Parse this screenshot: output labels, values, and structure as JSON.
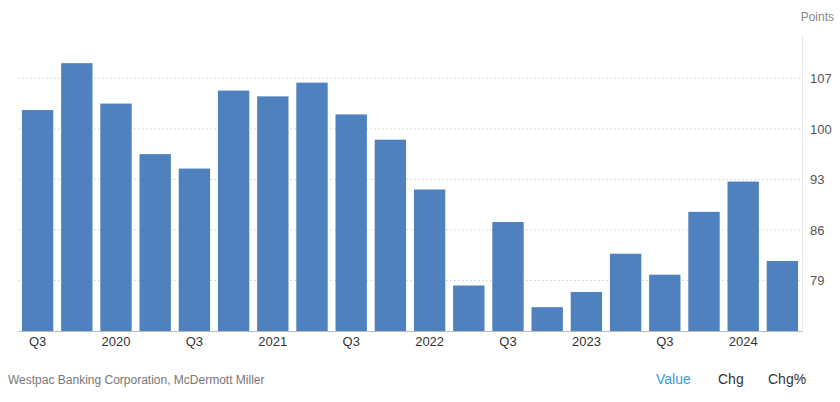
{
  "chart_data": {
    "type": "bar",
    "ylabel": "Points",
    "source": "Westpac Banking Corporation, McDermott Miller",
    "annotations": [
      "Value",
      "Chg",
      "Chg%"
    ],
    "categories": [
      "Q3",
      null,
      "2020",
      null,
      "Q3",
      null,
      "2021",
      null,
      "Q3",
      null,
      "2022",
      null,
      "Q3",
      null,
      "2023",
      null,
      "Q3",
      null,
      "2024",
      null
    ],
    "values": [
      102.6,
      109.1,
      103.5,
      96.5,
      94.5,
      105.3,
      104.5,
      106.4,
      102.0,
      98.5,
      91.6,
      78.3,
      87.1,
      75.3,
      77.4,
      82.7,
      79.8,
      88.5,
      92.7,
      81.7
    ],
    "color": "#4e81bd",
    "ylim": [
      72,
      113
    ],
    "yticks": [
      79,
      86,
      93,
      100,
      107
    ],
    "grid": true
  }
}
